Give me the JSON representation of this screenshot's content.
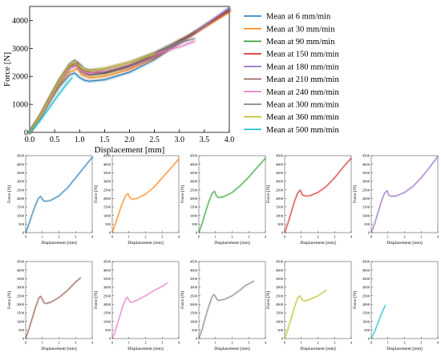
{
  "chart_data": [
    {
      "type": "line",
      "xlabel": "Displacement [mm]",
      "ylabel": "Force [N]",
      "xlim": [
        0,
        4
      ],
      "ylim": [
        0,
        4500
      ],
      "xticks": [
        "0.0",
        "0.5",
        "1.0",
        "1.5",
        "2.0",
        "2.5",
        "3.0",
        "3.5",
        "4.0"
      ],
      "yticks": [
        "0",
        "1000",
        "2000",
        "3000",
        "4000"
      ],
      "legend_position": "right",
      "series": [
        {
          "name": "Mean at 6 mm/min",
          "color": "#1f77b4",
          "x": [
            0,
            0.2,
            0.4,
            0.6,
            0.8,
            0.9,
            1.0,
            1.1,
            1.2,
            1.5,
            2.0,
            2.5,
            3.0,
            3.5,
            4.0
          ],
          "y": [
            0,
            500,
            1100,
            1650,
            2050,
            2120,
            1960,
            1860,
            1830,
            1880,
            2150,
            2600,
            3200,
            3800,
            4400
          ]
        },
        {
          "name": "Mean at 30 mm/min",
          "color": "#ff7f0e",
          "x": [
            0,
            0.2,
            0.4,
            0.6,
            0.8,
            0.95,
            1.05,
            1.2,
            1.5,
            2.0,
            2.5,
            3.0,
            3.5,
            4.0
          ],
          "y": [
            0,
            550,
            1150,
            1700,
            2150,
            2280,
            2050,
            1950,
            2000,
            2250,
            2650,
            3200,
            3750,
            4300
          ]
        },
        {
          "name": "Mean at 90 mm/min",
          "color": "#2ca02c",
          "x": [
            0,
            0.2,
            0.4,
            0.6,
            0.8,
            0.95,
            1.05,
            1.2,
            1.5,
            2.0,
            2.5,
            3.0,
            3.5,
            4.0
          ],
          "y": [
            0,
            550,
            1200,
            1800,
            2300,
            2420,
            2150,
            2050,
            2100,
            2350,
            2750,
            3250,
            3800,
            4350
          ]
        },
        {
          "name": "Mean at 150 mm/min",
          "color": "#d62728",
          "x": [
            0,
            0.2,
            0.4,
            0.6,
            0.8,
            0.95,
            1.05,
            1.2,
            1.5,
            2.0,
            2.5,
            3.0,
            3.5,
            4.0
          ],
          "y": [
            0,
            550,
            1200,
            1850,
            2350,
            2480,
            2220,
            2150,
            2150,
            2350,
            2700,
            3200,
            3800,
            4350
          ]
        },
        {
          "name": "Mean at 180 mm/min",
          "color": "#9467bd",
          "x": [
            0,
            0.2,
            0.4,
            0.6,
            0.8,
            0.95,
            1.05,
            1.2,
            1.5,
            2.0,
            2.5,
            3.0,
            3.5,
            4.0
          ],
          "y": [
            0,
            500,
            1150,
            1800,
            2300,
            2450,
            2200,
            2120,
            2150,
            2350,
            2700,
            3200,
            3800,
            4450
          ]
        },
        {
          "name": "Mean at 210 mm/min",
          "color": "#8c564b",
          "x": [
            0,
            0.2,
            0.4,
            0.6,
            0.8,
            0.9,
            1.0,
            1.1,
            1.2,
            1.5,
            2.0,
            2.5,
            3.0,
            3.3
          ],
          "y": [
            0,
            550,
            1200,
            1850,
            2380,
            2470,
            2300,
            2100,
            2050,
            2120,
            2400,
            2800,
            3300,
            3550
          ]
        },
        {
          "name": "Mean at 240 mm/min",
          "color": "#e377c2",
          "x": [
            0,
            0.2,
            0.4,
            0.6,
            0.8,
            0.9,
            1.0,
            1.1,
            1.2,
            1.5,
            2.0,
            2.5,
            3.0,
            3.3
          ],
          "y": [
            0,
            500,
            1150,
            1800,
            2300,
            2420,
            2250,
            2130,
            2120,
            2250,
            2500,
            2800,
            3050,
            3250
          ]
        },
        {
          "name": "Mean at 300 mm/min",
          "color": "#7f7f7f",
          "x": [
            0,
            0.2,
            0.4,
            0.6,
            0.8,
            0.9,
            1.0,
            1.1,
            1.2,
            1.5,
            2.0,
            2.5,
            2.8,
            3.0,
            3.3
          ],
          "y": [
            0,
            550,
            1250,
            1900,
            2450,
            2580,
            2450,
            2280,
            2230,
            2280,
            2500,
            2850,
            3100,
            3200,
            3350
          ]
        },
        {
          "name": "Mean at 360 mm/min",
          "color": "#bcbd22",
          "x": [
            0,
            0.2,
            0.4,
            0.6,
            0.8,
            0.9,
            1.0,
            1.1,
            1.2,
            1.5,
            2.0,
            2.5
          ],
          "y": [
            0,
            550,
            1200,
            1850,
            2400,
            2500,
            2350,
            2220,
            2200,
            2280,
            2500,
            2820
          ]
        },
        {
          "name": "Mean at 500 mm/min",
          "color": "#17becf",
          "x": [
            0,
            0.2,
            0.4,
            0.6,
            0.75,
            0.85
          ],
          "y": [
            0,
            400,
            900,
            1400,
            1750,
            1950
          ]
        }
      ]
    },
    {
      "type": "line",
      "xlabel": "Displacement [mm]",
      "ylabel": "Force [N]",
      "xlim": [
        0,
        4
      ],
      "ylim": [
        0,
        4500
      ],
      "xticks": [
        "0",
        "1",
        "2",
        "3",
        "4"
      ],
      "yticks": [
        "0",
        "500",
        "1000",
        "1500",
        "2000",
        "2500",
        "3000",
        "3500",
        "4000",
        "4500"
      ],
      "series": [
        {
          "color": "#1f77b4",
          "x": [
            0,
            0.2,
            0.4,
            0.6,
            0.8,
            0.9,
            1.0,
            1.1,
            1.2,
            1.5,
            2.0,
            2.5,
            3.0,
            3.5,
            4.0
          ],
          "y": [
            0,
            500,
            1100,
            1650,
            2050,
            2120,
            1960,
            1860,
            1830,
            1880,
            2150,
            2600,
            3200,
            3800,
            4400
          ]
        }
      ]
    },
    {
      "type": "line",
      "xlabel": "Displacement [mm]",
      "ylabel": "Force [N]",
      "xlim": [
        0,
        4
      ],
      "ylim": [
        0,
        4500
      ],
      "xticks": [
        "0",
        "1",
        "2",
        "3",
        "4"
      ],
      "yticks": [
        "0",
        "500",
        "1000",
        "1500",
        "2000",
        "2500",
        "3000",
        "3500",
        "4000",
        "4500"
      ],
      "series": [
        {
          "color": "#ff7f0e",
          "x": [
            0,
            0.2,
            0.4,
            0.6,
            0.8,
            0.95,
            1.05,
            1.2,
            1.5,
            2.0,
            2.5,
            3.0,
            3.5,
            4.0
          ],
          "y": [
            0,
            550,
            1150,
            1700,
            2150,
            2280,
            2050,
            1950,
            2000,
            2250,
            2650,
            3200,
            3750,
            4300
          ]
        }
      ]
    },
    {
      "type": "line",
      "xlabel": "Displacement [mm]",
      "ylabel": "Force [N]",
      "xlim": [
        0,
        4
      ],
      "ylim": [
        0,
        4500
      ],
      "xticks": [
        "0",
        "1",
        "2",
        "3",
        "4"
      ],
      "yticks": [
        "0",
        "500",
        "1000",
        "1500",
        "2000",
        "2500",
        "3000",
        "3500",
        "4000",
        "4500"
      ],
      "series": [
        {
          "color": "#2ca02c",
          "x": [
            0,
            0.2,
            0.4,
            0.6,
            0.8,
            0.95,
            1.05,
            1.2,
            1.5,
            2.0,
            2.5,
            3.0,
            3.5,
            4.0
          ],
          "y": [
            0,
            550,
            1200,
            1800,
            2300,
            2420,
            2150,
            2050,
            2100,
            2350,
            2750,
            3250,
            3800,
            4350
          ]
        }
      ]
    },
    {
      "type": "line",
      "xlabel": "Displacement [mm]",
      "ylabel": "Force [N]",
      "xlim": [
        0,
        4
      ],
      "ylim": [
        0,
        4500
      ],
      "xticks": [
        "0",
        "1",
        "2",
        "3",
        "4"
      ],
      "yticks": [
        "0",
        "500",
        "1000",
        "1500",
        "2000",
        "2500",
        "3000",
        "3500",
        "4000",
        "4500"
      ],
      "series": [
        {
          "color": "#d62728",
          "x": [
            0,
            0.2,
            0.4,
            0.6,
            0.8,
            0.95,
            1.05,
            1.2,
            1.5,
            2.0,
            2.5,
            3.0,
            3.5,
            4.0
          ],
          "y": [
            0,
            550,
            1200,
            1850,
            2350,
            2480,
            2220,
            2150,
            2150,
            2350,
            2700,
            3200,
            3800,
            4350
          ]
        }
      ]
    },
    {
      "type": "line",
      "xlabel": "Displacement [mm]",
      "ylabel": "Force [N]",
      "xlim": [
        0,
        4
      ],
      "ylim": [
        0,
        4500
      ],
      "xticks": [
        "0",
        "1",
        "2",
        "3",
        "4"
      ],
      "yticks": [
        "0",
        "500",
        "1000",
        "1500",
        "2000",
        "2500",
        "3000",
        "3500",
        "4000",
        "4500"
      ],
      "series": [
        {
          "color": "#9467bd",
          "x": [
            0,
            0.2,
            0.4,
            0.6,
            0.8,
            0.95,
            1.05,
            1.2,
            1.5,
            2.0,
            2.5,
            3.0,
            3.5,
            4.0
          ],
          "y": [
            0,
            500,
            1150,
            1800,
            2300,
            2450,
            2200,
            2120,
            2150,
            2350,
            2700,
            3200,
            3800,
            4450
          ]
        }
      ]
    },
    {
      "type": "line",
      "xlabel": "Displacement [mm]",
      "ylabel": "Force [N]",
      "xlim": [
        0,
        4
      ],
      "ylim": [
        0,
        4500
      ],
      "xticks": [
        "0",
        "1",
        "2",
        "3",
        "4"
      ],
      "yticks": [
        "0",
        "500",
        "1000",
        "1500",
        "2000",
        "2500",
        "3000",
        "3500",
        "4000",
        "4500"
      ],
      "series": [
        {
          "color": "#8c564b",
          "x": [
            0,
            0.2,
            0.4,
            0.6,
            0.8,
            0.9,
            1.0,
            1.1,
            1.2,
            1.5,
            2.0,
            2.5,
            3.0,
            3.3
          ],
          "y": [
            0,
            550,
            1200,
            1850,
            2380,
            2470,
            2300,
            2100,
            2050,
            2120,
            2400,
            2800,
            3300,
            3550
          ]
        }
      ]
    },
    {
      "type": "line",
      "xlabel": "Displacement [mm]",
      "ylabel": "Force [N]",
      "xlim": [
        0,
        4
      ],
      "ylim": [
        0,
        4500
      ],
      "xticks": [
        "0",
        "1",
        "2",
        "3",
        "4"
      ],
      "yticks": [
        "0",
        "500",
        "1000",
        "1500",
        "2000",
        "2500",
        "3000",
        "3500",
        "4000",
        "4500"
      ],
      "series": [
        {
          "color": "#e377c2",
          "x": [
            0,
            0.2,
            0.4,
            0.6,
            0.8,
            0.9,
            1.0,
            1.1,
            1.2,
            1.5,
            2.0,
            2.5,
            3.0,
            3.3
          ],
          "y": [
            0,
            500,
            1150,
            1800,
            2300,
            2420,
            2250,
            2130,
            2120,
            2250,
            2500,
            2800,
            3050,
            3250
          ]
        }
      ]
    },
    {
      "type": "line",
      "xlabel": "Displacement [mm]",
      "ylabel": "Force [N]",
      "xlim": [
        0,
        4
      ],
      "ylim": [
        0,
        4500
      ],
      "xticks": [
        "0",
        "1",
        "2",
        "3",
        "4"
      ],
      "yticks": [
        "0",
        "500",
        "1000",
        "1500",
        "2000",
        "2500",
        "3000",
        "3500",
        "4000",
        "4500"
      ],
      "series": [
        {
          "color": "#7f7f7f",
          "x": [
            0,
            0.2,
            0.4,
            0.6,
            0.8,
            0.9,
            1.0,
            1.1,
            1.2,
            1.5,
            2.0,
            2.5,
            2.8,
            3.0,
            3.3
          ],
          "y": [
            0,
            550,
            1250,
            1900,
            2450,
            2580,
            2450,
            2280,
            2230,
            2280,
            2500,
            2850,
            3100,
            3200,
            3350
          ]
        }
      ]
    },
    {
      "type": "line",
      "xlabel": "Displacement [mm]",
      "ylabel": "Force [N]",
      "xlim": [
        0,
        4
      ],
      "ylim": [
        0,
        4500
      ],
      "xticks": [
        "0",
        "1",
        "2",
        "3",
        "4"
      ],
      "yticks": [
        "0",
        "500",
        "1000",
        "1500",
        "2000",
        "2500",
        "3000",
        "3500",
        "4000",
        "4500"
      ],
      "series": [
        {
          "color": "#bcbd22",
          "x": [
            0,
            0.2,
            0.4,
            0.6,
            0.8,
            0.9,
            1.0,
            1.1,
            1.2,
            1.5,
            2.0,
            2.5
          ],
          "y": [
            0,
            550,
            1200,
            1850,
            2400,
            2500,
            2350,
            2220,
            2200,
            2280,
            2500,
            2820
          ]
        }
      ]
    },
    {
      "type": "line",
      "xlabel": "Displacement [mm]",
      "ylabel": "Force [N]",
      "xlim": [
        0,
        4
      ],
      "ylim": [
        0,
        4500
      ],
      "xticks": [
        "0",
        "1",
        "2",
        "3",
        "4"
      ],
      "yticks": [
        "0",
        "500",
        "1000",
        "1500",
        "2000",
        "2500",
        "3000",
        "3500",
        "4000",
        "4500"
      ],
      "series": [
        {
          "color": "#17becf",
          "x": [
            0,
            0.2,
            0.4,
            0.6,
            0.75,
            0.85
          ],
          "y": [
            0,
            400,
            900,
            1400,
            1750,
            1950
          ]
        }
      ]
    }
  ]
}
